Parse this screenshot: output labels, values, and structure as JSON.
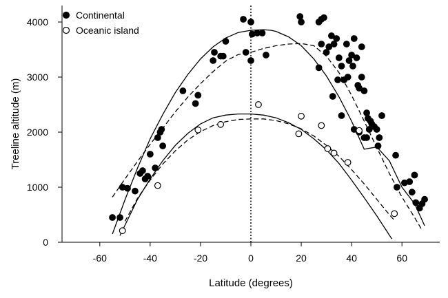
{
  "chart_data": {
    "type": "scatter",
    "title": "",
    "xlabel": "Latitude (degrees)",
    "ylabel": "Treeline altitude (m)",
    "xlim": [
      -75,
      75
    ],
    "ylim": [
      0,
      4300
    ],
    "xticks": [
      -60,
      -40,
      -20,
      0,
      20,
      40,
      60
    ],
    "yticks": [
      0,
      1000,
      2000,
      3000,
      4000
    ],
    "xtick_labels": [
      "-60",
      "-40",
      "-20",
      "0",
      "20",
      "40",
      "60"
    ],
    "ytick_labels": [
      "0",
      "1000",
      "2000",
      "3000",
      "4000"
    ],
    "reference_line": {
      "x": 0,
      "style": "dotted"
    },
    "legend_position": "top-left",
    "series": [
      {
        "name": "Continental",
        "marker": "filled-circle",
        "points": [
          [
            -55,
            450
          ],
          [
            -52,
            450
          ],
          [
            -51,
            1000
          ],
          [
            -49,
            980
          ],
          [
            -46,
            930
          ],
          [
            -44,
            1250
          ],
          [
            -43,
            1300
          ],
          [
            -42,
            1150
          ],
          [
            -41,
            1200
          ],
          [
            -40,
            1600
          ],
          [
            -38,
            1350
          ],
          [
            -37,
            1900
          ],
          [
            -36,
            2000
          ],
          [
            -35.5,
            2050
          ],
          [
            -35,
            1750
          ],
          [
            -27,
            2750
          ],
          [
            -22,
            2520
          ],
          [
            -21,
            2670
          ],
          [
            -15,
            3300
          ],
          [
            -14.5,
            3450
          ],
          [
            -12,
            3380
          ],
          [
            -11,
            3380
          ],
          [
            -10,
            3650
          ],
          [
            -3,
            4050
          ],
          [
            -2,
            3450
          ],
          [
            0,
            4000
          ],
          [
            0.5,
            3780
          ],
          [
            0,
            3300
          ],
          [
            2.5,
            3800
          ],
          [
            4.5,
            3800
          ],
          [
            6,
            3400
          ],
          [
            19.5,
            4100
          ],
          [
            20,
            4000
          ],
          [
            27,
            4000
          ],
          [
            28,
            4050
          ],
          [
            29,
            4080
          ],
          [
            27,
            3170
          ],
          [
            28,
            3600
          ],
          [
            30,
            3450
          ],
          [
            31,
            3550
          ],
          [
            32,
            3750
          ],
          [
            33,
            3600
          ],
          [
            34,
            3700
          ],
          [
            35,
            3350
          ],
          [
            36,
            3200
          ],
          [
            32.5,
            2650
          ],
          [
            34.5,
            2950
          ],
          [
            37,
            2950
          ],
          [
            38,
            3600
          ],
          [
            38.5,
            3000
          ],
          [
            39,
            3300
          ],
          [
            40,
            3400
          ],
          [
            40.5,
            3200
          ],
          [
            41,
            3700
          ],
          [
            42,
            3350
          ],
          [
            42.5,
            2850
          ],
          [
            43,
            2800
          ],
          [
            44,
            3550
          ],
          [
            44,
            3000
          ],
          [
            45,
            2750
          ],
          [
            46,
            2350
          ],
          [
            46.5,
            2250
          ],
          [
            47,
            2050
          ],
          [
            47.5,
            2200
          ],
          [
            48,
            2150
          ],
          [
            49,
            2100
          ],
          [
            50,
            2050
          ],
          [
            50.5,
            1750
          ],
          [
            51,
            1900
          ],
          [
            52,
            2300
          ],
          [
            41,
            2050
          ],
          [
            43,
            2000
          ],
          [
            45,
            1900
          ],
          [
            46,
            1900
          ],
          [
            36,
            2300
          ],
          [
            57.5,
            1580
          ],
          [
            58,
            1000
          ],
          [
            61,
            1080
          ],
          [
            63,
            1100
          ],
          [
            64,
            910
          ],
          [
            65,
            1220
          ],
          [
            65.5,
            720
          ],
          [
            67,
            620
          ],
          [
            68,
            700
          ],
          [
            69,
            780
          ]
        ]
      },
      {
        "name": "Oceanic island",
        "marker": "open-circle",
        "points": [
          [
            -51,
            210
          ],
          [
            -37,
            1030
          ],
          [
            -21,
            2040
          ],
          [
            -12,
            2140
          ],
          [
            3,
            2500
          ],
          [
            19,
            1970
          ],
          [
            20,
            2290
          ],
          [
            28,
            2120
          ],
          [
            30.5,
            1700
          ],
          [
            33,
            1620
          ],
          [
            38.5,
            1450
          ],
          [
            43,
            2030
          ],
          [
            57,
            520
          ]
        ]
      }
    ],
    "fitted_curves": [
      {
        "series": "Continental",
        "style": "solid",
        "points": [
          [
            -55,
            150
          ],
          [
            -50,
            770
          ],
          [
            -45,
            1350
          ],
          [
            -40,
            1880
          ],
          [
            -35,
            2320
          ],
          [
            -30,
            2720
          ],
          [
            -25,
            3050
          ],
          [
            -20,
            3330
          ],
          [
            -15,
            3550
          ],
          [
            -10,
            3710
          ],
          [
            -5,
            3810
          ],
          [
            0,
            3850
          ],
          [
            5,
            3860
          ],
          [
            8,
            3850
          ],
          [
            10,
            3830
          ],
          [
            15,
            3730
          ],
          [
            20,
            3570
          ],
          [
            25,
            3330
          ],
          [
            30,
            3020
          ],
          [
            35,
            2640
          ],
          [
            40,
            2200
          ],
          [
            45,
            1690
          ],
          [
            50,
            1730
          ],
          [
            55,
            1480
          ],
          [
            60,
            1000
          ],
          [
            65,
            700
          ],
          [
            69,
            300
          ]
        ]
      },
      {
        "series": "Continental",
        "style": "dashed",
        "points": [
          [
            -55,
            820
          ],
          [
            -50,
            1150
          ],
          [
            -45,
            1470
          ],
          [
            -40,
            1780
          ],
          [
            -35,
            2070
          ],
          [
            -30,
            2370
          ],
          [
            -25,
            2640
          ],
          [
            -20,
            2880
          ],
          [
            -15,
            3100
          ],
          [
            -10,
            3290
          ],
          [
            -5,
            3410
          ],
          [
            0,
            3450
          ],
          [
            5,
            3520
          ],
          [
            10,
            3570
          ],
          [
            15,
            3600
          ],
          [
            20,
            3610
          ],
          [
            25,
            3570
          ],
          [
            30,
            3380
          ],
          [
            35,
            3080
          ],
          [
            40,
            2670
          ],
          [
            45,
            2200
          ],
          [
            50,
            1720
          ],
          [
            55,
            1250
          ],
          [
            60,
            820
          ],
          [
            65,
            450
          ],
          [
            68,
            220
          ]
        ]
      },
      {
        "series": "Oceanic island",
        "style": "solid",
        "points": [
          [
            -52,
            120
          ],
          [
            -45,
            780
          ],
          [
            -40,
            1150
          ],
          [
            -35,
            1480
          ],
          [
            -30,
            1760
          ],
          [
            -25,
            1980
          ],
          [
            -20,
            2150
          ],
          [
            -15,
            2260
          ],
          [
            -10,
            2310
          ],
          [
            -5,
            2330
          ],
          [
            0,
            2330
          ],
          [
            5,
            2310
          ],
          [
            10,
            2260
          ],
          [
            15,
            2170
          ],
          [
            20,
            2050
          ],
          [
            25,
            1880
          ],
          [
            30,
            1680
          ],
          [
            35,
            1430
          ],
          [
            40,
            1130
          ],
          [
            45,
            810
          ],
          [
            50,
            480
          ],
          [
            55,
            130
          ],
          [
            56,
            60
          ]
        ]
      },
      {
        "series": "Oceanic island",
        "style": "dashed",
        "points": [
          [
            -50,
            380
          ],
          [
            -45,
            800
          ],
          [
            -40,
            1130
          ],
          [
            -35,
            1420
          ],
          [
            -30,
            1660
          ],
          [
            -25,
            1860
          ],
          [
            -20,
            2010
          ],
          [
            -15,
            2120
          ],
          [
            -10,
            2190
          ],
          [
            -5,
            2230
          ],
          [
            0,
            2240
          ],
          [
            5,
            2240
          ],
          [
            10,
            2210
          ],
          [
            15,
            2150
          ],
          [
            20,
            2060
          ],
          [
            25,
            1930
          ],
          [
            30,
            1760
          ],
          [
            35,
            1560
          ],
          [
            40,
            1320
          ],
          [
            45,
            1060
          ],
          [
            50,
            780
          ],
          [
            55,
            500
          ],
          [
            57,
            400
          ]
        ]
      }
    ]
  }
}
